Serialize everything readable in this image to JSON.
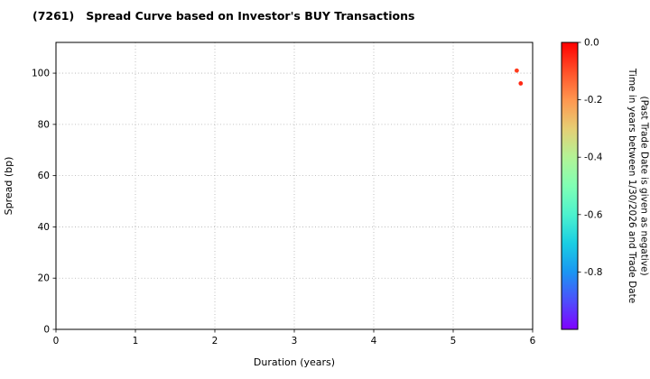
{
  "chart_data": {
    "type": "scatter",
    "title": "(7261)   Spread Curve based on Investor's BUY Transactions",
    "xlabel": "Duration (years)",
    "ylabel": "Spread (bp)",
    "xlim": [
      0,
      6
    ],
    "ylim": [
      0,
      112
    ],
    "xticks": [
      0,
      1,
      2,
      3,
      4,
      5,
      6
    ],
    "yticks": [
      0,
      20,
      40,
      60,
      80,
      100
    ],
    "grid": true,
    "legend": "none",
    "points": [
      {
        "x": 5.8,
        "y": 101,
        "trade_time": -0.03,
        "color": "#ff3b1c"
      },
      {
        "x": 5.85,
        "y": 96,
        "trade_time": -0.06,
        "color": "#ff2814"
      }
    ],
    "colorbar": {
      "title_line1": "Time in years between 1/30/2026 and Trade Date",
      "title_line2": "(Past Trade Date is given as negative)",
      "range": [
        0,
        -1
      ],
      "ticks": [
        {
          "value": 0.0,
          "label": "0.0"
        },
        {
          "value": -0.2,
          "label": "-0.2"
        },
        {
          "value": -0.4,
          "label": "-0.4"
        },
        {
          "value": -0.6,
          "label": "-0.6"
        },
        {
          "value": -0.8,
          "label": "-0.8"
        }
      ],
      "colormap": [
        {
          "offset": 0.0,
          "color": "#ff0000"
        },
        {
          "offset": 0.1,
          "color": "#ff4f28"
        },
        {
          "offset": 0.2,
          "color": "#ff964f"
        },
        {
          "offset": 0.3,
          "color": "#e6ce74"
        },
        {
          "offset": 0.4,
          "color": "#b3f396"
        },
        {
          "offset": 0.5,
          "color": "#80ffb4"
        },
        {
          "offset": 0.6,
          "color": "#4df2ce"
        },
        {
          "offset": 0.7,
          "color": "#1acee3"
        },
        {
          "offset": 0.8,
          "color": "#1a96f2"
        },
        {
          "offset": 0.9,
          "color": "#4d4ffc"
        },
        {
          "offset": 1.0,
          "color": "#8000ff"
        }
      ]
    }
  }
}
